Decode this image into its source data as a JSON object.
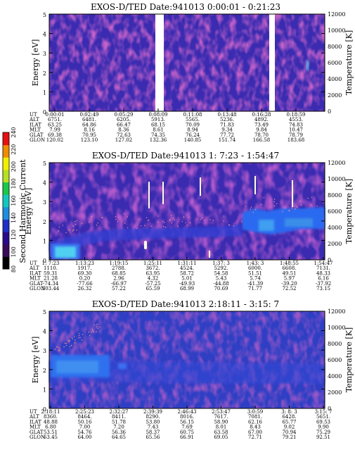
{
  "panels": [
    {
      "title": "EXOS-D/TED   Date:941013  0:00:01 - 0:21:23",
      "ylabel_left": "Energy [eV]",
      "ylabel_right": "Temperature [K]",
      "yticks_left": [
        "0",
        "1",
        "2",
        "3",
        "4",
        "5"
      ],
      "yticks_right": [
        "0",
        "2000",
        "4000",
        "6000",
        "8000",
        "10000",
        "12000"
      ],
      "gaps": [
        [
          0.385,
          0.405
        ],
        [
          0.795,
          0.815
        ]
      ],
      "ephemeris": [
        {
          "label": "UT",
          "values": [
            "0:00:01",
            "0:02:49",
            "0:05:29",
            "0:08:09",
            "0:11:08",
            "0:13:48",
            "0:16:28",
            "0:18:59"
          ]
        },
        {
          "label": "ALT",
          "values": [
            "6751.",
            "6481.",
            "6205.",
            "5913.",
            "5565.",
            "5236.",
            "4892.",
            "4553."
          ]
        },
        {
          "label": "ILAT",
          "values": [
            "63.25",
            "64.86",
            "66.47",
            "68.15",
            "70.09",
            "71.83",
            "73.49",
            "74.83"
          ]
        },
        {
          "label": "MLT",
          "values": [
            "7.99",
            "8.16",
            "8.36",
            "8.61",
            "8.94",
            "9.34",
            "9.84",
            "10.47"
          ]
        },
        {
          "label": "GLAT",
          "values": [
            "69.38",
            "70.95",
            "72.63",
            "74.35",
            "76.24",
            "77.72",
            "78.70",
            "78.79"
          ]
        },
        {
          "label": "GLON",
          "values": [
            "120.02",
            "123.10",
            "127.02",
            "132.36",
            "140.85",
            "151.74",
            "166.58",
            "183.68"
          ]
        }
      ]
    },
    {
      "title": "EXOS-D/TED   Date:941013  1: 7:23 - 1:54:47",
      "ylabel_left": "Energy [eV]",
      "ylabel_right": "Temperature [K]",
      "yticks_left": [
        "0",
        "1",
        "2",
        "3",
        "4",
        "5"
      ],
      "yticks_right": [
        "0",
        "2000",
        "4000",
        "6000",
        "8000",
        "10000",
        "12000"
      ],
      "gaps": [],
      "ephemeris": [
        {
          "label": "UT",
          "values": [
            "1: 7:23",
            "1:13:23",
            "1:19:15",
            "1:25:11",
            "1:31:11",
            "1:37: 3",
            "1:43: 3",
            "1:48:55",
            "1:54:47"
          ]
        },
        {
          "label": "ALT",
          "values": [
            "1110.",
            "1917.",
            "2788.",
            "3672.",
            "4524.",
            "5292.",
            "6000.",
            "6608.",
            "7131."
          ]
        },
        {
          "label": "ILAT",
          "values": [
            "59.31",
            "69.30",
            "68.85",
            "63.95",
            "58.72",
            "54.58",
            "51.51",
            "49.51",
            "48.33"
          ]
        },
        {
          "label": "MLT",
          "values": [
            "21.28",
            "0.20",
            "2.96",
            "4.32",
            "5.01",
            "5.43",
            "5.74",
            "5.97",
            "6.16"
          ]
        },
        {
          "label": "GLAT",
          "values": [
            "-74.34",
            "-77.66",
            "-66.97",
            "-57.25",
            "-49.93",
            "-44.88",
            "-41.39",
            "-39.20",
            "-37.92"
          ]
        },
        {
          "label": "GLON",
          "values": [
            "303.44",
            "26.32",
            "57.22",
            "65.59",
            "68.99",
            "70.69",
            "71.77",
            "72.52",
            "73.15"
          ]
        }
      ]
    },
    {
      "title": "EXOS-D/TED   Date:941013  2:18:11 - 3:15: 7",
      "ylabel_left": "Energy [eV]",
      "ylabel_right": "Temperature [K]",
      "yticks_left": [
        "0",
        "1",
        "2",
        "3",
        "4",
        "5"
      ],
      "yticks_right": [
        "0",
        "2000",
        "4000",
        "6000",
        "8000",
        "10000",
        "12000"
      ],
      "gaps": [],
      "ephemeris": [
        {
          "label": "UT",
          "values": [
            "2:18:11",
            "2:25:23",
            "2:32:27",
            "2:39:39",
            "2:46:43",
            "2:53:47",
            "3:0:59",
            "3: 8: 3",
            "3:15: 7"
          ]
        },
        {
          "label": "ALT",
          "values": [
            "8360.",
            "8464.",
            "8411.",
            "8290.",
            "8016.",
            "7617.",
            "7081.",
            "6428.",
            "5651."
          ]
        },
        {
          "label": "ILAT",
          "values": [
            "48.88",
            "50.16",
            "51.78",
            "53.80",
            "56.15",
            "58.90",
            "62.16",
            "65.77",
            "69.53"
          ]
        },
        {
          "label": "MLT",
          "values": [
            "6.80",
            "7.00",
            "7.20",
            "7.43",
            "7.69",
            "8.01",
            "8.43",
            "9.02",
            "9.90"
          ]
        },
        {
          "label": "GLAT",
          "values": [
            "53.51",
            "54.76",
            "56.36",
            "58.37",
            "60.75",
            "63.58",
            "67.00",
            "70.94",
            "75.29"
          ]
        },
        {
          "label": "GLON",
          "values": [
            "63.45",
            "64.00",
            "64.65",
            "65.56",
            "66.91",
            "69.05",
            "72.71",
            "79.21",
            "92.51"
          ]
        }
      ]
    }
  ],
  "colorbar": {
    "label": "Second Harmonic Current",
    "ticks": [
      "80",
      "100",
      "120",
      "140",
      "160",
      "180",
      "200",
      "220",
      "240"
    ],
    "colors": [
      "#000000",
      "#3a0a5a",
      "#2a0a8c",
      "#1f2fc8",
      "#1e8ee0",
      "#10c8c0",
      "#18c848",
      "#b8e020",
      "#f0f000",
      "#f08c00",
      "#e81010"
    ]
  },
  "colors": {
    "background_dark": "#3a2bb0",
    "background_mid": "#2f3fc4",
    "enhanced": "#3a6ff0",
    "bright": "#50d0f0",
    "dots": "#ff9090",
    "emission": "#ffffe0"
  },
  "chart_data": [
    {
      "type": "heatmap",
      "title": "EXOS-D/TED   Date:941013  0:00:01 - 0:21:23",
      "xlabel": "",
      "ylabel": "Energy [eV]",
      "y2label": "Temperature [K]",
      "ylim": [
        0,
        5
      ],
      "y2lim": [
        0,
        12000
      ],
      "x": [
        "0:00:01",
        "0:02:49",
        "0:05:29",
        "0:08:09",
        "0:11:08",
        "0:13:48",
        "0:16:28",
        "0:18:59"
      ],
      "data_gaps_ut": [
        [
          "0:08:10",
          "0:10:50"
        ],
        [
          "0:17:00",
          "0:18:00"
        ]
      ]
    },
    {
      "type": "heatmap",
      "title": "EXOS-D/TED   Date:941013  1: 7:23 - 1:54:47",
      "xlabel": "",
      "ylabel": "Energy [eV]",
      "y2label": "Temperature [K]",
      "ylim": [
        0,
        5
      ],
      "y2lim": [
        0,
        12000
      ],
      "x": [
        "1: 7:23",
        "1:13:23",
        "1:19:15",
        "1:25:11",
        "1:31:11",
        "1:37: 3",
        "1:43: 3",
        "1:48:55",
        "1:54:47"
      ],
      "enhancements": [
        {
          "ut_range": [
            "1: 7:23",
            "1:10:30"
          ],
          "energy_range": [
            0,
            1.0
          ]
        },
        {
          "ut_range": [
            "1:40:00",
            "1:54:47"
          ],
          "energy_range": [
            1.1,
            2.9
          ]
        }
      ]
    },
    {
      "type": "heatmap",
      "title": "EXOS-D/TED   Date:941013  2:18:11 - 3:15: 7",
      "xlabel": "",
      "ylabel": "Energy [eV]",
      "y2label": "Temperature [K]",
      "ylim": [
        0,
        5
      ],
      "y2lim": [
        0,
        12000
      ],
      "x": [
        "2:18:11",
        "2:25:23",
        "2:32:27",
        "2:39:39",
        "2:46:43",
        "2:53:47",
        "3:0:59",
        "3: 8: 3",
        "3:15: 7"
      ],
      "enhancements": [
        {
          "ut_range": [
            "2:18:11",
            "2:27:00"
          ],
          "energy_range": [
            1.4,
            2.9
          ]
        }
      ]
    }
  ]
}
